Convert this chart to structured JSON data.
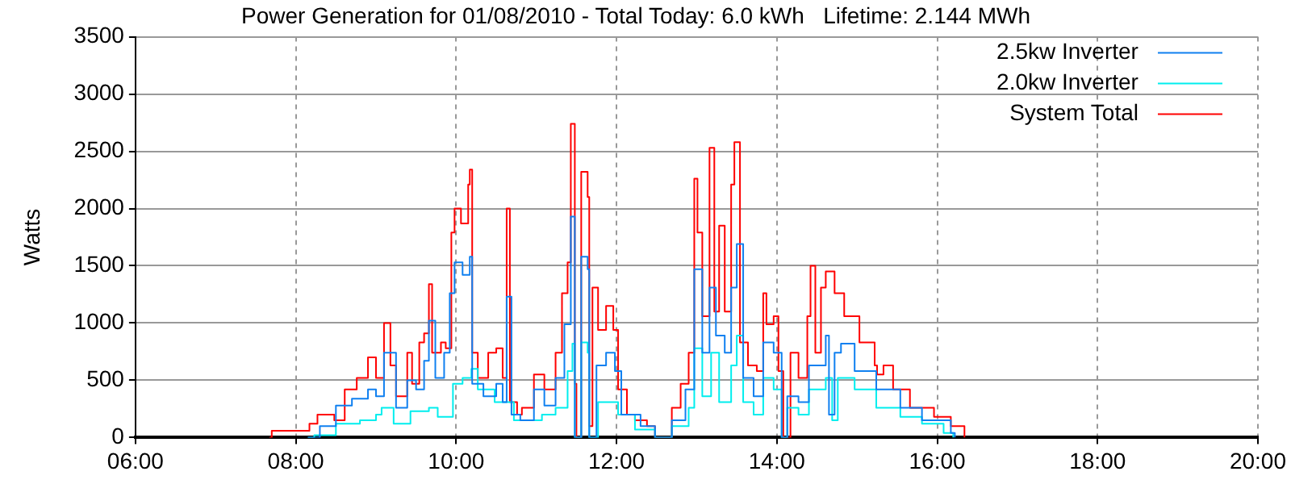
{
  "chart_data": {
    "type": "step",
    "title": "Power Generation for 01/08/2010 - Total Today: 6.0 kWh   Lifetime: 2.144 MWh",
    "ylabel": "Watts",
    "xlim": [
      6,
      20
    ],
    "xticks": [
      {
        "value": 6,
        "label": "06:00"
      },
      {
        "value": 8,
        "label": "08:00"
      },
      {
        "value": 10,
        "label": "10:00"
      },
      {
        "value": 12,
        "label": "12:00"
      },
      {
        "value": 14,
        "label": "14:00"
      },
      {
        "value": 16,
        "label": "16:00"
      },
      {
        "value": 18,
        "label": "18:00"
      },
      {
        "value": 20,
        "label": "20:00"
      }
    ],
    "ylim": [
      0,
      3500
    ],
    "yticks": [
      0,
      500,
      1000,
      1500,
      2000,
      2500,
      3000,
      3500
    ],
    "grid": true,
    "legend": "top right",
    "line_style": "solid",
    "marker": "none",
    "series": [
      {
        "name": "2.5kw Inverter",
        "color": "#1080f0",
        "x": [
          8.15,
          8.3,
          8.5,
          8.7,
          8.9,
          9.0,
          9.1,
          9.25,
          9.39,
          9.5,
          9.6,
          9.66,
          9.74,
          9.85,
          9.92,
          9.98,
          10.08,
          10.17,
          10.2,
          10.34,
          10.5,
          10.58,
          10.63,
          10.69,
          10.8,
          10.97,
          11.1,
          11.24,
          11.35,
          11.43,
          11.48,
          11.56,
          11.64,
          11.66,
          11.75,
          11.87,
          11.98,
          12.06,
          12.3,
          12.48,
          12.69,
          12.86,
          12.97,
          13.07,
          13.16,
          13.24,
          13.35,
          13.43,
          13.5,
          13.58,
          13.71,
          13.83,
          13.96,
          14.06,
          14.13,
          14.27,
          14.4,
          14.61,
          14.65,
          14.72,
          14.8,
          14.97,
          15.24,
          15.54,
          15.81,
          16.17,
          16.22
        ],
        "values": [
          0,
          100,
          280,
          340,
          420,
          360,
          740,
          260,
          500,
          420,
          670,
          1020,
          520,
          740,
          1260,
          1530,
          1420,
          1580,
          470,
          360,
          470,
          310,
          1230,
          200,
          150,
          420,
          280,
          520,
          990,
          1930,
          0,
          1580,
          1470,
          0,
          630,
          740,
          580,
          200,
          100,
          0,
          150,
          420,
          1470,
          740,
          1310,
          890,
          740,
          1310,
          1690,
          520,
          360,
          830,
          740,
          0,
          360,
          310,
          630,
          890,
          200,
          740,
          820,
          580,
          420,
          260,
          150,
          40,
          0
        ]
      },
      {
        "name": "2.0kw Inverter",
        "color": "#00eeee",
        "x": [
          8.15,
          8.23,
          8.5,
          8.8,
          9.0,
          9.07,
          9.22,
          9.43,
          9.66,
          9.77,
          9.96,
          10.08,
          10.19,
          10.27,
          10.48,
          10.61,
          10.72,
          10.9,
          11.07,
          11.24,
          11.39,
          11.45,
          11.48,
          11.56,
          11.64,
          11.66,
          11.77,
          11.92,
          12.02,
          12.23,
          12.48,
          12.69,
          12.9,
          12.97,
          13.07,
          13.18,
          13.28,
          13.43,
          13.5,
          13.58,
          13.71,
          13.83,
          13.96,
          14.06,
          14.13,
          14.27,
          14.4,
          14.61,
          14.69,
          14.76,
          14.97,
          15.24,
          15.54,
          15.81,
          16.08,
          16.2
        ],
        "values": [
          0,
          20,
          120,
          150,
          200,
          260,
          120,
          230,
          260,
          180,
          470,
          520,
          600,
          420,
          310,
          310,
          150,
          150,
          200,
          260,
          580,
          820,
          0,
          830,
          740,
          0,
          310,
          310,
          200,
          70,
          0,
          100,
          260,
          780,
          360,
          740,
          310,
          630,
          890,
          310,
          200,
          520,
          420,
          0,
          260,
          200,
          420,
          520,
          150,
          520,
          420,
          260,
          180,
          120,
          40,
          0
        ]
      },
      {
        "name": "System Total",
        "color": "#ff0000",
        "x": [
          7.67,
          7.7,
          8.1,
          8.17,
          8.27,
          8.48,
          8.61,
          8.76,
          8.9,
          9.0,
          9.1,
          9.18,
          9.25,
          9.39,
          9.45,
          9.54,
          9.6,
          9.66,
          9.7,
          9.81,
          9.87,
          9.94,
          9.98,
          10.06,
          10.15,
          10.17,
          10.2,
          10.27,
          10.4,
          10.5,
          10.58,
          10.63,
          10.67,
          10.76,
          10.82,
          10.97,
          11.1,
          11.24,
          11.32,
          11.39,
          11.43,
          11.48,
          11.5,
          11.56,
          11.64,
          11.66,
          11.7,
          11.77,
          11.87,
          11.96,
          12.02,
          12.13,
          12.23,
          12.38,
          12.48,
          12.65,
          12.69,
          12.8,
          12.9,
          12.97,
          13.01,
          13.07,
          13.16,
          13.22,
          13.28,
          13.35,
          13.43,
          13.47,
          13.54,
          13.64,
          13.75,
          13.83,
          13.87,
          13.96,
          14.02,
          14.08,
          14.17,
          14.27,
          14.38,
          14.42,
          14.48,
          14.55,
          14.61,
          14.72,
          14.84,
          15.03,
          15.22,
          15.25,
          15.33,
          15.45,
          15.66,
          15.96,
          16.17,
          16.34
        ],
        "values": [
          0,
          60,
          60,
          120,
          200,
          150,
          420,
          520,
          700,
          520,
          1000,
          630,
          360,
          740,
          470,
          830,
          910,
          1340,
          740,
          830,
          780,
          1790,
          2000,
          1870,
          2210,
          2340,
          740,
          520,
          740,
          780,
          520,
          2000,
          310,
          200,
          260,
          550,
          420,
          740,
          1260,
          1530,
          2740,
          470,
          0,
          2320,
          2100,
          100,
          1310,
          940,
          1150,
          940,
          420,
          200,
          150,
          100,
          0,
          0,
          260,
          470,
          740,
          2260,
          1790,
          1060,
          2530,
          1100,
          1850,
          1100,
          2210,
          2580,
          830,
          630,
          580,
          1260,
          990,
          1060,
          580,
          0,
          740,
          520,
          1060,
          1500,
          740,
          1310,
          1450,
          1260,
          1060,
          830,
          630,
          550,
          630,
          420,
          260,
          180,
          100,
          0
        ]
      }
    ]
  }
}
